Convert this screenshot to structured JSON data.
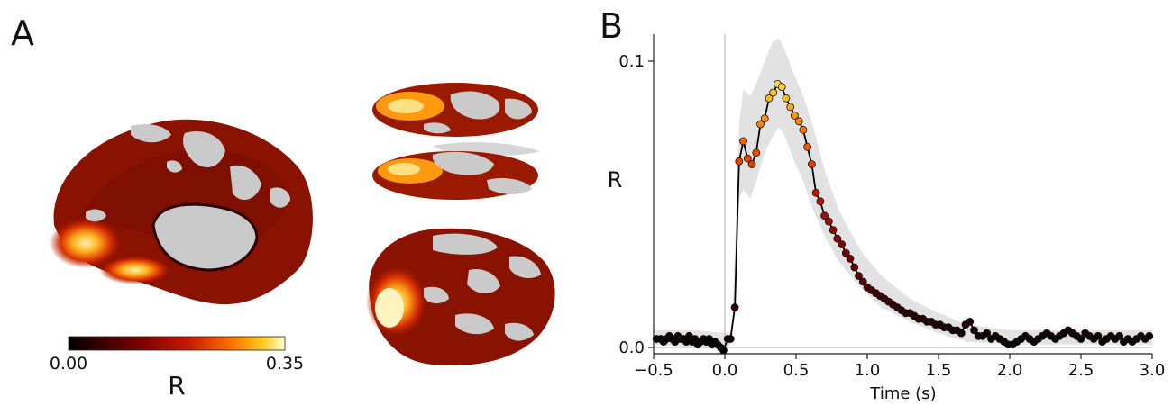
{
  "panels": {
    "a": "A",
    "b": "B"
  },
  "colorbar": {
    "min_label": "0.00",
    "max_label": "0.35",
    "label": "R",
    "range": [
      0,
      0.35
    ]
  },
  "colors": {
    "fill_band": "#e0e0e0",
    "line": "#000000",
    "zero_line": "#c8c8c8",
    "brain_gray": "#c9c9c9"
  },
  "chart_data": {
    "type": "line",
    "xlabel": "Time (s)",
    "ylabel": "R",
    "xlim": [
      -0.5,
      3.0
    ],
    "ylim": [
      -0.002,
      0.11
    ],
    "xticks": [
      -0.5,
      0.0,
      0.5,
      1.0,
      1.5,
      2.0,
      2.5,
      3.0
    ],
    "xtick_labels": [
      "−0.5",
      "0.0",
      "0.5",
      "1.0",
      "1.5",
      "2.0",
      "2.5",
      "3.0"
    ],
    "yticks": [
      0.0,
      0.1
    ],
    "ytick_labels": [
      "0.0",
      "0.1"
    ],
    "color_scale": [
      0,
      0.1
    ],
    "x": [
      -0.48,
      -0.45,
      -0.43,
      -0.41,
      -0.39,
      -0.37,
      -0.35,
      -0.33,
      -0.31,
      -0.29,
      -0.27,
      -0.25,
      -0.23,
      -0.21,
      -0.19,
      -0.17,
      -0.15,
      -0.13,
      -0.11,
      -0.09,
      -0.07,
      -0.05,
      -0.03,
      -0.01,
      0.02,
      0.04,
      0.07,
      0.1,
      0.13,
      0.16,
      0.19,
      0.22,
      0.25,
      0.28,
      0.31,
      0.34,
      0.37,
      0.4,
      0.43,
      0.46,
      0.49,
      0.52,
      0.55,
      0.58,
      0.61,
      0.64,
      0.67,
      0.7,
      0.73,
      0.76,
      0.79,
      0.82,
      0.85,
      0.88,
      0.91,
      0.94,
      0.97,
      1.0,
      1.03,
      1.06,
      1.09,
      1.12,
      1.15,
      1.18,
      1.21,
      1.24,
      1.27,
      1.3,
      1.33,
      1.36,
      1.39,
      1.42,
      1.45,
      1.48,
      1.51,
      1.54,
      1.57,
      1.6,
      1.63,
      1.66,
      1.69,
      1.72,
      1.75,
      1.78,
      1.81,
      1.84,
      1.87,
      1.9,
      1.93,
      1.96,
      1.99,
      2.02,
      2.05,
      2.08,
      2.11,
      2.14,
      2.17,
      2.2,
      2.23,
      2.26,
      2.29,
      2.32,
      2.35,
      2.38,
      2.41,
      2.44,
      2.47,
      2.5,
      2.53,
      2.56,
      2.59,
      2.62,
      2.65,
      2.68,
      2.71,
      2.74,
      2.77,
      2.8,
      2.83,
      2.86,
      2.89,
      2.92,
      2.95,
      2.98
    ],
    "y": [
      0.003,
      0.003,
      0.002,
      0.003,
      0.004,
      0.003,
      0.002,
      0.004,
      0.003,
      0.003,
      0.002,
      0.004,
      0.002,
      0.003,
      0.001,
      0.002,
      0.003,
      0.002,
      0.003,
      0.001,
      0.002,
      0.001,
      0.0,
      -0.001,
      0.003,
      0.003,
      0.014,
      0.065,
      0.072,
      0.066,
      0.064,
      0.068,
      0.078,
      0.08,
      0.087,
      0.089,
      0.092,
      0.091,
      0.087,
      0.084,
      0.081,
      0.079,
      0.076,
      0.07,
      0.064,
      0.054,
      0.051,
      0.046,
      0.044,
      0.041,
      0.038,
      0.036,
      0.033,
      0.031,
      0.028,
      0.025,
      0.023,
      0.021,
      0.02,
      0.019,
      0.018,
      0.017,
      0.016,
      0.015,
      0.014,
      0.013,
      0.012,
      0.012,
      0.011,
      0.01,
      0.01,
      0.009,
      0.009,
      0.008,
      0.008,
      0.007,
      0.007,
      0.006,
      0.006,
      0.005,
      0.008,
      0.009,
      0.006,
      0.004,
      0.004,
      0.005,
      0.003,
      0.004,
      0.003,
      0.002,
      0.001,
      0.001,
      0.002,
      0.003,
      0.004,
      0.003,
      0.002,
      0.003,
      0.004,
      0.005,
      0.004,
      0.003,
      0.004,
      0.005,
      0.006,
      0.005,
      0.004,
      0.003,
      0.005,
      0.004,
      0.003,
      0.004,
      0.002,
      0.003,
      0.004,
      0.003,
      0.004,
      0.002,
      0.003,
      0.002,
      0.003,
      0.004,
      0.003,
      0.004
    ],
    "ci_x": [
      -0.5,
      -0.2,
      0.0,
      0.05,
      0.1,
      0.13,
      0.18,
      0.22,
      0.28,
      0.34,
      0.38,
      0.42,
      0.48,
      0.55,
      0.62,
      0.7,
      0.8,
      0.95,
      1.1,
      1.3,
      1.5,
      1.7,
      2.0,
      2.5,
      3.0
    ],
    "ci_low": [
      0.001,
      0.0,
      -0.001,
      0.002,
      0.052,
      0.055,
      0.052,
      0.058,
      0.068,
      0.074,
      0.077,
      0.074,
      0.066,
      0.058,
      0.048,
      0.039,
      0.03,
      0.021,
      0.014,
      0.009,
      0.005,
      0.002,
      0.001,
      0.001,
      0.001
    ],
    "ci_high": [
      0.006,
      0.006,
      0.005,
      0.005,
      0.078,
      0.09,
      0.088,
      0.092,
      0.1,
      0.107,
      0.108,
      0.104,
      0.096,
      0.088,
      0.077,
      0.062,
      0.048,
      0.034,
      0.025,
      0.017,
      0.012,
      0.008,
      0.006,
      0.006,
      0.006
    ]
  }
}
